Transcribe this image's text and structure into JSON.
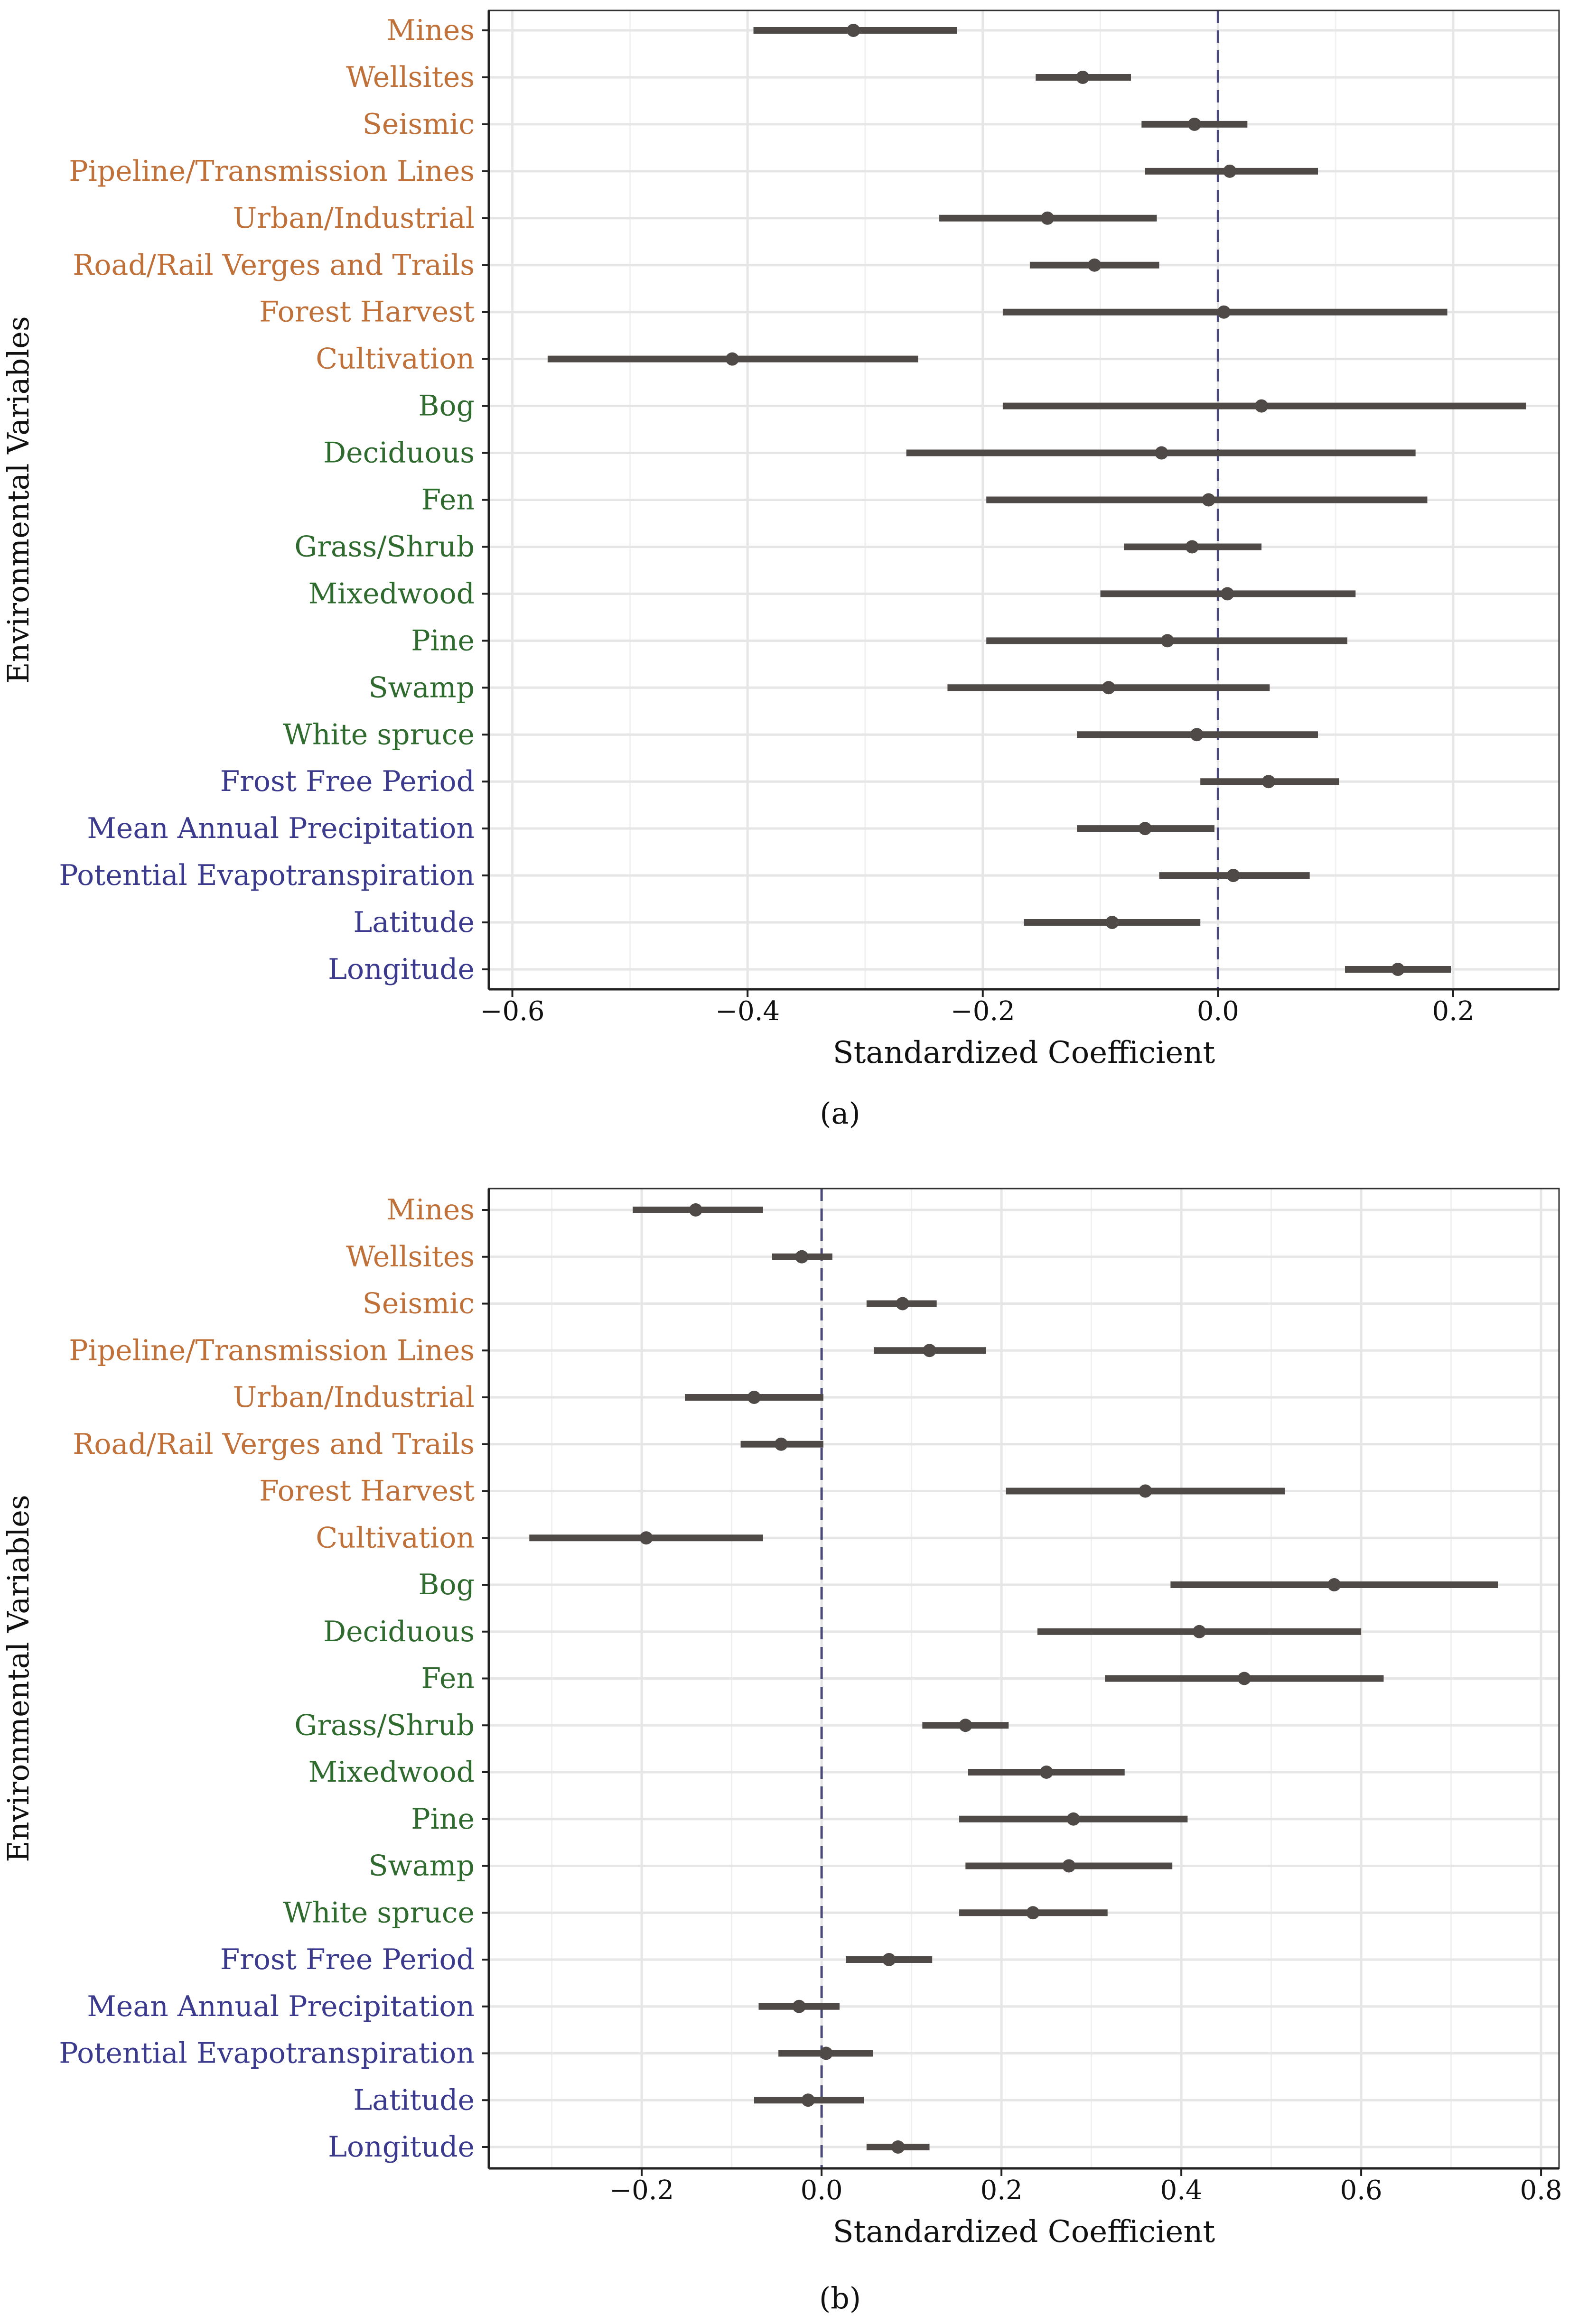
{
  "colors": {
    "anthropogenic": "#c0713a",
    "vegetation": "#2f6a2e",
    "climate_geo": "#3b3a8c",
    "estimate": "#4f4a47",
    "zero_line": "#4a4a7a",
    "grid": "#e6e6e6",
    "axis": "#222222"
  },
  "chart_data": [
    {
      "type": "forest",
      "caption": "(a)",
      "xlabel": "Standardized Coefficient",
      "ylabel": "Environmental Variables",
      "xlim": [
        -0.62,
        0.29
      ],
      "xticks": [
        -0.6,
        -0.4,
        -0.2,
        0.0,
        0.2
      ],
      "xtick_labels": [
        "−0.6",
        "−0.4",
        "−0.2",
        "0.0",
        "0.2"
      ],
      "minor_gridlines": [
        -0.5,
        -0.3,
        -0.1,
        0.1
      ],
      "reference_line": 0.0,
      "rows": [
        {
          "label": "Mines",
          "group": "anthropogenic",
          "estimate": -0.31,
          "lower": -0.395,
          "upper": -0.222
        },
        {
          "label": "Wellsites",
          "group": "anthropogenic",
          "estimate": -0.115,
          "lower": -0.155,
          "upper": -0.074
        },
        {
          "label": "Seismic",
          "group": "anthropogenic",
          "estimate": -0.02,
          "lower": -0.065,
          "upper": 0.025
        },
        {
          "label": "Pipeline/Transmission Lines",
          "group": "anthropogenic",
          "estimate": 0.01,
          "lower": -0.062,
          "upper": 0.085
        },
        {
          "label": "Urban/Industrial",
          "group": "anthropogenic",
          "estimate": -0.145,
          "lower": -0.237,
          "upper": -0.052
        },
        {
          "label": "Road/Rail Verges and Trails",
          "group": "anthropogenic",
          "estimate": -0.105,
          "lower": -0.16,
          "upper": -0.05
        },
        {
          "label": "Forest Harvest",
          "group": "anthropogenic",
          "estimate": 0.005,
          "lower": -0.183,
          "upper": 0.195
        },
        {
          "label": "Cultivation",
          "group": "anthropogenic",
          "estimate": -0.413,
          "lower": -0.57,
          "upper": -0.255
        },
        {
          "label": "Bog",
          "group": "vegetation",
          "estimate": 0.037,
          "lower": -0.183,
          "upper": 0.262
        },
        {
          "label": "Deciduous",
          "group": "vegetation",
          "estimate": -0.048,
          "lower": -0.265,
          "upper": 0.168
        },
        {
          "label": "Fen",
          "group": "vegetation",
          "estimate": -0.008,
          "lower": -0.197,
          "upper": 0.178
        },
        {
          "label": "Grass/Shrub",
          "group": "vegetation",
          "estimate": -0.022,
          "lower": -0.08,
          "upper": 0.037
        },
        {
          "label": "Mixedwood",
          "group": "vegetation",
          "estimate": 0.008,
          "lower": -0.1,
          "upper": 0.117
        },
        {
          "label": "Pine",
          "group": "vegetation",
          "estimate": -0.043,
          "lower": -0.197,
          "upper": 0.11
        },
        {
          "label": "Swamp",
          "group": "vegetation",
          "estimate": -0.093,
          "lower": -0.23,
          "upper": 0.044
        },
        {
          "label": "White spruce",
          "group": "vegetation",
          "estimate": -0.018,
          "lower": -0.12,
          "upper": 0.085
        },
        {
          "label": "Frost Free Period",
          "group": "climate_geo",
          "estimate": 0.043,
          "lower": -0.015,
          "upper": 0.103
        },
        {
          "label": "Mean Annual Precipitation",
          "group": "climate_geo",
          "estimate": -0.062,
          "lower": -0.12,
          "upper": -0.003
        },
        {
          "label": "Potential Evapotranspiration",
          "group": "climate_geo",
          "estimate": 0.013,
          "lower": -0.05,
          "upper": 0.078
        },
        {
          "label": "Latitude",
          "group": "climate_geo",
          "estimate": -0.09,
          "lower": -0.165,
          "upper": -0.015
        },
        {
          "label": "Longitude",
          "group": "climate_geo",
          "estimate": 0.153,
          "lower": 0.108,
          "upper": 0.198
        }
      ]
    },
    {
      "type": "forest",
      "caption": "(b)",
      "xlabel": "Standardized Coefficient",
      "ylabel": "Environmental Variables",
      "xlim": [
        -0.37,
        0.82
      ],
      "xticks": [
        -0.2,
        0.0,
        0.2,
        0.4,
        0.6,
        0.8
      ],
      "xtick_labels": [
        "−0.2",
        "0.0",
        "0.2",
        "0.4",
        "0.6",
        "0.8"
      ],
      "minor_gridlines": [
        -0.3,
        -0.1,
        0.1,
        0.3,
        0.5,
        0.7
      ],
      "reference_line": 0.0,
      "rows": [
        {
          "label": "Mines",
          "group": "anthropogenic",
          "estimate": -0.14,
          "lower": -0.21,
          "upper": -0.065
        },
        {
          "label": "Wellsites",
          "group": "anthropogenic",
          "estimate": -0.022,
          "lower": -0.055,
          "upper": 0.012
        },
        {
          "label": "Seismic",
          "group": "anthropogenic",
          "estimate": 0.09,
          "lower": 0.05,
          "upper": 0.128
        },
        {
          "label": "Pipeline/Transmission Lines",
          "group": "anthropogenic",
          "estimate": 0.12,
          "lower": 0.058,
          "upper": 0.183
        },
        {
          "label": "Urban/Industrial",
          "group": "anthropogenic",
          "estimate": -0.075,
          "lower": -0.152,
          "upper": 0.002
        },
        {
          "label": "Road/Rail Verges and Trails",
          "group": "anthropogenic",
          "estimate": -0.045,
          "lower": -0.09,
          "upper": 0.002
        },
        {
          "label": "Forest Harvest",
          "group": "anthropogenic",
          "estimate": 0.36,
          "lower": 0.205,
          "upper": 0.515
        },
        {
          "label": "Cultivation",
          "group": "anthropogenic",
          "estimate": -0.195,
          "lower": -0.325,
          "upper": -0.065
        },
        {
          "label": "Bog",
          "group": "vegetation",
          "estimate": 0.57,
          "lower": 0.388,
          "upper": 0.752
        },
        {
          "label": "Deciduous",
          "group": "vegetation",
          "estimate": 0.42,
          "lower": 0.24,
          "upper": 0.6
        },
        {
          "label": "Fen",
          "group": "vegetation",
          "estimate": 0.47,
          "lower": 0.315,
          "upper": 0.625
        },
        {
          "label": "Grass/Shrub",
          "group": "vegetation",
          "estimate": 0.16,
          "lower": 0.112,
          "upper": 0.208
        },
        {
          "label": "Mixedwood",
          "group": "vegetation",
          "estimate": 0.25,
          "lower": 0.163,
          "upper": 0.337
        },
        {
          "label": "Pine",
          "group": "vegetation",
          "estimate": 0.28,
          "lower": 0.153,
          "upper": 0.407
        },
        {
          "label": "Swamp",
          "group": "vegetation",
          "estimate": 0.275,
          "lower": 0.16,
          "upper": 0.39
        },
        {
          "label": "White spruce",
          "group": "vegetation",
          "estimate": 0.235,
          "lower": 0.153,
          "upper": 0.318
        },
        {
          "label": "Frost Free Period",
          "group": "climate_geo",
          "estimate": 0.075,
          "lower": 0.027,
          "upper": 0.123
        },
        {
          "label": "Mean Annual Precipitation",
          "group": "climate_geo",
          "estimate": -0.025,
          "lower": -0.07,
          "upper": 0.02
        },
        {
          "label": "Potential Evapotranspiration",
          "group": "climate_geo",
          "estimate": 0.005,
          "lower": -0.048,
          "upper": 0.057
        },
        {
          "label": "Latitude",
          "group": "climate_geo",
          "estimate": -0.015,
          "lower": -0.075,
          "upper": 0.047
        },
        {
          "label": "Longitude",
          "group": "climate_geo",
          "estimate": 0.085,
          "lower": 0.05,
          "upper": 0.12
        }
      ]
    }
  ]
}
